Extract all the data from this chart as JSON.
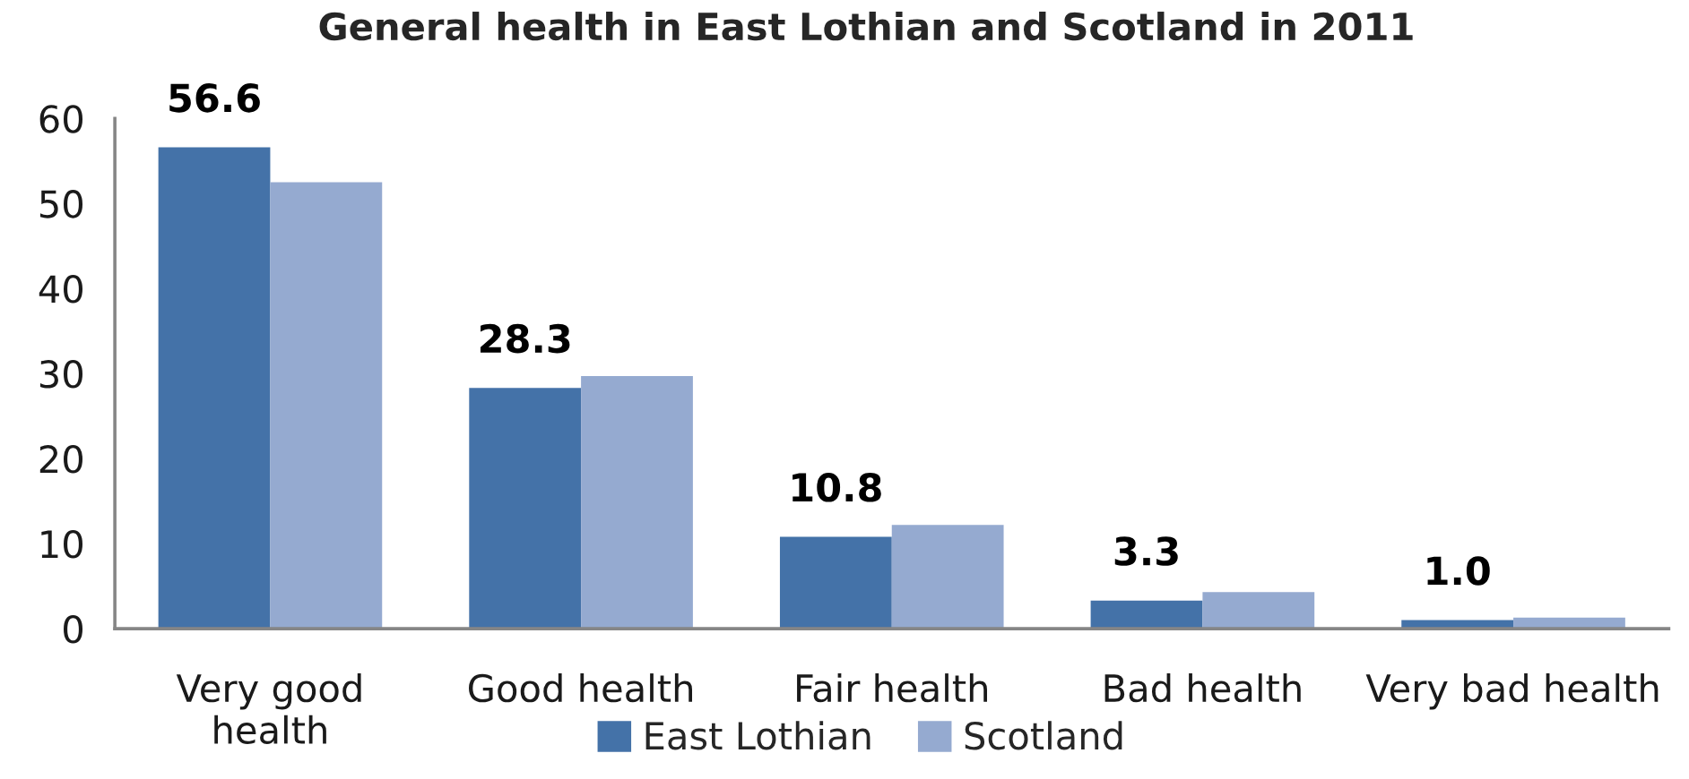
{
  "chart_data": {
    "type": "bar",
    "title": "General health in East Lothian and Scotland in 2011",
    "categories": [
      "Very good\nhealth",
      "Good health",
      "Fair health",
      "Bad health",
      "Very bad health"
    ],
    "series": [
      {
        "name": "East Lothian",
        "color": "#4472a8",
        "values": [
          56.6,
          28.3,
          10.8,
          3.3,
          1.0
        ],
        "value_labels": [
          "56.6",
          "28.3",
          "10.8",
          "3.3",
          "1.0"
        ]
      },
      {
        "name": "Scotland",
        "color": "#95aad0",
        "values": [
          52.5,
          29.7,
          12.2,
          4.3,
          1.3
        ]
      }
    ],
    "ylim": [
      0,
      60
    ],
    "yticks": [
      0,
      10,
      20,
      30,
      40,
      50,
      60
    ],
    "grid": false,
    "legend": "bottom"
  }
}
